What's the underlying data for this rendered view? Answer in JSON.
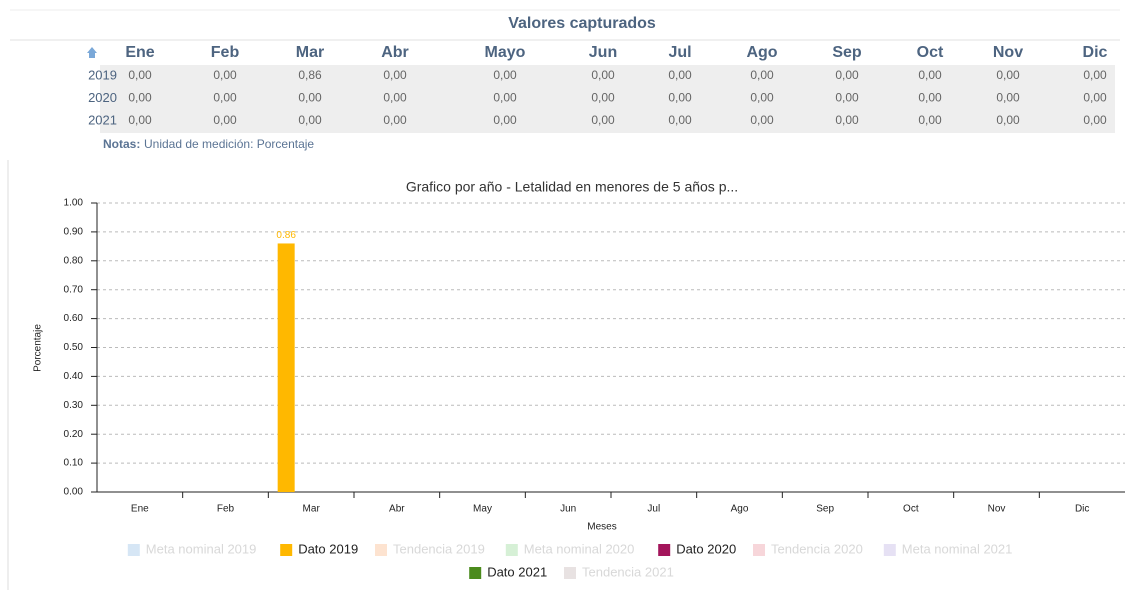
{
  "table": {
    "title": "Valores capturados",
    "header": [
      "Ene",
      "Feb",
      "Mar",
      "Abr",
      "Mayo",
      "Jun",
      "Jul",
      "Ago",
      "Sep",
      "Oct",
      "Nov",
      "Dic"
    ],
    "rows": [
      {
        "year": "2019",
        "values": [
          "0,00",
          "0,00",
          "0,86",
          "0,00",
          "0,00",
          "0,00",
          "0,00",
          "0,00",
          "0,00",
          "0,00",
          "0,00",
          "0,00"
        ]
      },
      {
        "year": "2020",
        "values": [
          "0,00",
          "0,00",
          "0,00",
          "0,00",
          "0,00",
          "0,00",
          "0,00",
          "0,00",
          "0,00",
          "0,00",
          "0,00",
          "0,00"
        ]
      },
      {
        "year": "2021",
        "values": [
          "0,00",
          "0,00",
          "0,00",
          "0,00",
          "0,00",
          "0,00",
          "0,00",
          "0,00",
          "0,00",
          "0,00",
          "0,00",
          "0,00"
        ]
      }
    ],
    "notes_label": "Notas:",
    "notes": "Unidad de medición: Porcentaje"
  },
  "chart_data": {
    "type": "bar",
    "title": "Grafico por año - Letalidad en menores de 5 años p...",
    "x_label": "Meses",
    "y_label": "Porcentaje",
    "categories": [
      "Ene",
      "Feb",
      "Mar",
      "Abr",
      "May",
      "Jun",
      "Jul",
      "Ago",
      "Sep",
      "Oct",
      "Nov",
      "Dic"
    ],
    "series": [
      {
        "name": "Meta nominal 2019",
        "color": "#d6e6f5",
        "visible": false
      },
      {
        "name": "Dato 2019",
        "color": "#ffb800",
        "visible": true,
        "values": [
          0,
          0,
          0.86,
          0,
          0,
          0,
          0,
          0,
          0,
          0,
          0,
          0
        ]
      },
      {
        "name": "Tendencia 2019",
        "color": "#fde3d0",
        "visible": false
      },
      {
        "name": "Meta nominal 2020",
        "color": "#d6f0d6",
        "visible": false
      },
      {
        "name": "Dato 2020",
        "color": "#a3155b",
        "visible": true,
        "values": [
          0,
          0,
          0,
          0,
          0,
          0,
          0,
          0,
          0,
          0,
          0,
          0
        ]
      },
      {
        "name": "Tendencia 2020",
        "color": "#f7d6da",
        "visible": false
      },
      {
        "name": "Meta nominal 2021",
        "color": "#e6e1f4",
        "visible": false
      },
      {
        "name": "Dato 2021",
        "color": "#4b8b1d",
        "visible": true,
        "values": [
          0,
          0,
          0,
          0,
          0,
          0,
          0,
          0,
          0,
          0,
          0,
          0
        ]
      },
      {
        "name": "Tendencia 2021",
        "color": "#e8e2e2",
        "visible": false
      }
    ],
    "ylim": [
      0,
      1
    ],
    "yticks": [
      {
        "value": 0,
        "label": "0.00"
      },
      {
        "value": 0.1,
        "label": "0.10"
      },
      {
        "value": 0.2,
        "label": "0.20"
      },
      {
        "value": 0.3,
        "label": "0.30"
      },
      {
        "value": 0.4,
        "label": "0.40"
      },
      {
        "value": 0.5,
        "label": "0.50"
      },
      {
        "value": 0.6,
        "label": "0.60"
      },
      {
        "value": 0.7,
        "label": "0.70"
      },
      {
        "value": 0.8,
        "label": "0.80"
      },
      {
        "value": 0.9,
        "label": "0.90"
      },
      {
        "value": 1,
        "label": "1.00"
      }
    ],
    "grid": true
  }
}
